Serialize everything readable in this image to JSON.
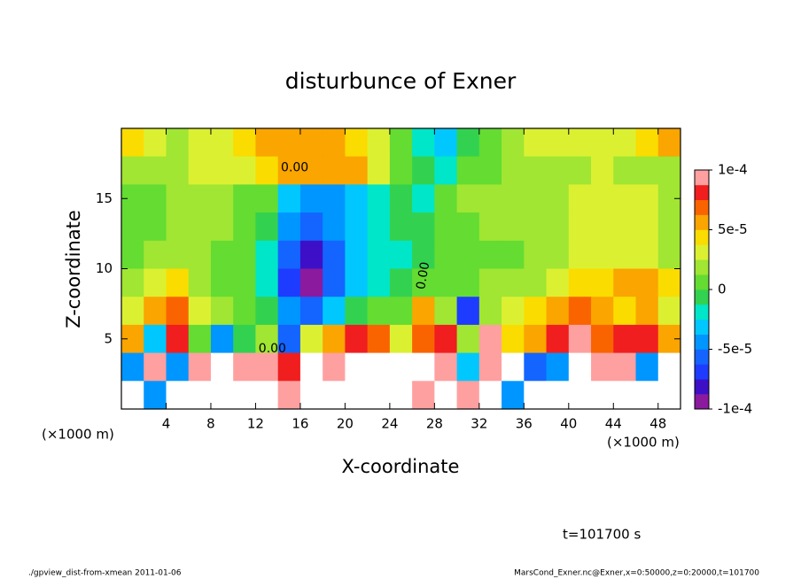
{
  "chart_data": {
    "type": "heatmap",
    "title": "disturbunce of Exner",
    "x_label": "X-coordinate",
    "y_label": "Z-coordinate",
    "x_unit": "(×1000 m)",
    "y_unit": "(×1000 m)",
    "time_label": "t=101700 s",
    "footer_left": "./gpview_dist-from-xmean  2011-01-06",
    "footer_right": "MarsCond_Exner.nc@Exner,x=0:50000,z=0:20000,t=101700",
    "contour_label": "0.00",
    "xlim": [
      0,
      50
    ],
    "xticks": [
      4,
      8,
      12,
      16,
      20,
      24,
      28,
      32,
      36,
      40,
      44,
      48
    ],
    "ylim": [
      0,
      20
    ],
    "yticks": [
      5,
      10,
      15
    ],
    "x": [
      1,
      3,
      5,
      7,
      9,
      11,
      13,
      15,
      17,
      19,
      21,
      23,
      25,
      27,
      29,
      31,
      33,
      35,
      37,
      39,
      41,
      43,
      45,
      47,
      49
    ],
    "y": [
      19,
      17,
      15,
      13,
      11,
      9,
      7,
      5,
      3,
      1
    ],
    "z": [
      [
        4e-05,
        3e-05,
        2e-05,
        3e-05,
        3e-05,
        4e-05,
        5e-05,
        6e-05,
        6e-05,
        5e-05,
        4e-05,
        3e-05,
        1e-05,
        -2e-05,
        -3e-05,
        -1e-05,
        1e-05,
        2e-05,
        3e-05,
        3e-05,
        3e-05,
        3e-05,
        3e-05,
        4e-05,
        5e-05
      ],
      [
        2e-05,
        2e-05,
        2e-05,
        3e-05,
        3e-05,
        3e-05,
        4e-05,
        5e-05,
        6e-05,
        6e-05,
        5e-05,
        3e-05,
        1e-05,
        -1e-05,
        -2e-05,
        0,
        1e-05,
        2e-05,
        2e-05,
        2e-05,
        2e-05,
        3e-05,
        2e-05,
        2e-05,
        2e-05
      ],
      [
        1e-05,
        1e-05,
        2e-05,
        2e-05,
        2e-05,
        1e-05,
        0,
        -3e-05,
        -4e-05,
        -4e-05,
        -3e-05,
        -2e-05,
        -1e-05,
        -2e-05,
        1e-05,
        2e-05,
        2e-05,
        2e-05,
        2e-05,
        2e-05,
        3e-05,
        3e-05,
        3e-05,
        3e-05,
        2e-05
      ],
      [
        1e-05,
        1e-05,
        2e-05,
        2e-05,
        2e-05,
        1e-05,
        -1e-05,
        -5e-05,
        -6e-05,
        -5e-05,
        -3e-05,
        -2e-05,
        -1e-05,
        -1e-05,
        1e-05,
        1e-05,
        2e-05,
        2e-05,
        2e-05,
        2e-05,
        3e-05,
        3e-05,
        3e-05,
        3e-05,
        2e-05
      ],
      [
        1e-05,
        2e-05,
        2e-05,
        2e-05,
        1e-05,
        1e-05,
        -2e-05,
        -6e-05,
        -8e-05,
        -6e-05,
        -3e-05,
        -2e-05,
        -2e-05,
        -1e-05,
        0,
        1e-05,
        1e-05,
        1e-05,
        2e-05,
        2e-05,
        3e-05,
        3e-05,
        3e-05,
        3e-05,
        2e-05
      ],
      [
        2e-05,
        3e-05,
        4e-05,
        2e-05,
        1e-05,
        1e-05,
        -2e-05,
        -7e-05,
        -9e-05,
        -6e-05,
        -3e-05,
        -2e-05,
        -1e-05,
        0,
        1e-05,
        1e-05,
        2e-05,
        2e-05,
        2e-05,
        3e-05,
        4e-05,
        4e-05,
        5e-05,
        5e-05,
        4e-05
      ],
      [
        3e-05,
        6e-05,
        7e-05,
        3e-05,
        2e-05,
        1e-05,
        -1e-05,
        -5e-05,
        -6e-05,
        -3e-05,
        -1e-05,
        1e-05,
        1e-05,
        5e-05,
        2e-05,
        -7e-05,
        2e-05,
        3e-05,
        4e-05,
        5e-05,
        7e-05,
        5e-05,
        4e-05,
        6e-05,
        3e-05
      ],
      [
        5e-05,
        -3e-05,
        8e-05,
        1e-05,
        -4e-05,
        -1e-05,
        2e-05,
        -6e-05,
        3e-05,
        6e-05,
        8e-05,
        7e-05,
        3e-05,
        7e-05,
        8e-05,
        2e-05,
        9e-05,
        4e-05,
        6e-05,
        8e-05,
        0.0001,
        7e-05,
        8e-05,
        8e-05,
        5e-05
      ],
      [
        -4e-05,
        0.0001,
        -5e-05,
        0.0001,
        0.00011,
        0.0001,
        9e-05,
        8e-05,
        0.00012,
        0.0001,
        0.00012,
        0.00012,
        0.00011,
        0.00012,
        0.0001,
        -3e-05,
        0.0001,
        0.00012,
        -6e-05,
        -4e-05,
        0.00012,
        0.0001,
        0.0001,
        -5e-05,
        0.00012
      ],
      [
        0.00012,
        -5e-05,
        0.00012,
        0.00012,
        0.00012,
        0.00012,
        0.00012,
        0.0001,
        0.00012,
        0.00012,
        0.00012,
        0.00012,
        0.00012,
        0.0001,
        0.00012,
        0.0001,
        0.00012,
        -4e-05,
        0.00012,
        0.00012,
        0.00012,
        0.00012,
        0.00012,
        0.00012,
        0.00012
      ]
    ],
    "clim": [
      -0.0001,
      0.0001
    ],
    "cticks": [
      {
        "value": 0.0001,
        "label": "1e-4"
      },
      {
        "value": 5e-05,
        "label": "5e-5"
      },
      0,
      {
        "value": -5e-05,
        "label": "-5e-5"
      },
      {
        "value": -0.0001,
        "label": "-1e-4"
      }
    ],
    "colorscale": [
      "#8b1a9e",
      "#3d10c8",
      "#1e3cff",
      "#1464ff",
      "#0096ff",
      "#00c8ff",
      "#00e6c8",
      "#32d250",
      "#64dc32",
      "#a0e632",
      "#dcf032",
      "#fadc00",
      "#faa500",
      "#fa6400",
      "#f01e1e",
      "#ffa0a0"
    ],
    "out_of_range_color": "#ffffff"
  }
}
